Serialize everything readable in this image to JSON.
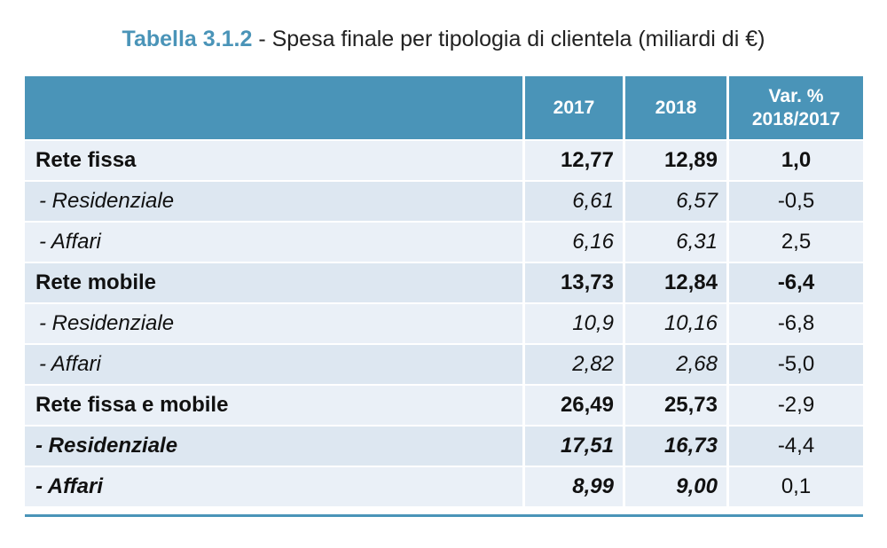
{
  "caption": {
    "label": "Tabella 3.1.2",
    "text": " - Spesa finale per tipologia di clientela (miliardi di €)"
  },
  "table": {
    "headers": {
      "label": "",
      "y2017": "2017",
      "y2018": "2018",
      "var_line1": "Var. %",
      "var_line2": "2018/2017"
    },
    "rows": [
      {
        "label": "Rete fissa",
        "y2017": "12,77",
        "y2018": "12,89",
        "var": "1,0"
      },
      {
        "label": " - Residenziale",
        "y2017": "6,61",
        "y2018": "6,57",
        "var": "-0,5"
      },
      {
        "label": " - Affari",
        "y2017": "6,16",
        "y2018": "6,31",
        "var": "2,5"
      },
      {
        "label": "Rete mobile",
        "y2017": "13,73",
        "y2018": "12,84",
        "var": "-6,4"
      },
      {
        "label": " - Residenziale",
        "y2017": "10,9",
        "y2018": "10,16",
        "var": "-6,8"
      },
      {
        "label": " - Affari",
        "y2017": "2,82",
        "y2018": "2,68",
        "var": "-5,0"
      },
      {
        "label": "Rete fissa e mobile",
        "y2017": "26,49",
        "y2018": "25,73",
        "var": "-2,9"
      },
      {
        "label": " - Residenziale",
        "y2017": "17,51",
        "y2018": "16,73",
        "var": "-4,4"
      },
      {
        "label": " - Affari",
        "y2017": "8,99",
        "y2018": "9,00",
        "var": "0,1"
      }
    ]
  },
  "colors": {
    "header_bg": "#4a94b8",
    "row_light": "#eaf0f7",
    "row_dark": "#dde7f1",
    "caption_label": "#4a94b8"
  }
}
